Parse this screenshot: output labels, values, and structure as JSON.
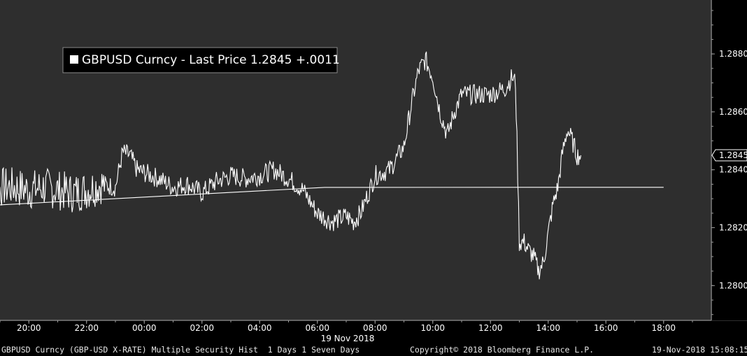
{
  "chart_data": {
    "type": "line",
    "title": "",
    "legend": {
      "entries": [
        {
          "label": "GBPUSD Curncy - Last Price 1.2845 +.0011",
          "color": "#ffffff"
        }
      ],
      "placement": "top-left"
    },
    "series": [
      {
        "name": "GBPUSD Curncy - Last Price",
        "color": "#ffffff",
        "x": [
          "18:00",
          "18:30",
          "19:00",
          "19:30",
          "20:00",
          "20:30",
          "21:00",
          "21:30",
          "22:00",
          "22:30",
          "23:00",
          "23:15",
          "23:30",
          "23:45",
          "00:00",
          "00:30",
          "01:00",
          "01:30",
          "02:00",
          "02:30",
          "03:00",
          "03:30",
          "04:00",
          "04:30",
          "05:00",
          "05:30",
          "06:00",
          "06:30",
          "07:00",
          "07:15",
          "07:30",
          "08:00",
          "08:30",
          "09:00",
          "09:15",
          "09:30",
          "09:45",
          "10:00",
          "10:15",
          "10:30",
          "10:45",
          "11:00",
          "11:30",
          "12:00",
          "12:30",
          "12:45",
          "12:52",
          "12:55",
          "13:00",
          "13:10",
          "13:20",
          "13:30",
          "13:40",
          "13:50",
          "14:00",
          "14:10",
          "14:20",
          "14:30",
          "14:40",
          "14:50",
          "15:00",
          "15:08"
        ],
        "y": [
          1.2834,
          1.2833,
          1.2834,
          1.2834,
          1.2833,
          1.2834,
          1.2833,
          1.2832,
          1.2833,
          1.2835,
          1.2834,
          1.2846,
          1.2845,
          1.284,
          1.2839,
          1.2837,
          1.2834,
          1.2835,
          1.2832,
          1.2836,
          1.2838,
          1.2837,
          1.2838,
          1.284,
          1.2837,
          1.2833,
          1.2825,
          1.2822,
          1.2824,
          1.2822,
          1.2825,
          1.2838,
          1.284,
          1.2848,
          1.2862,
          1.2874,
          1.2878,
          1.2872,
          1.286,
          1.2852,
          1.286,
          1.2866,
          1.2866,
          1.2866,
          1.2868,
          1.2872,
          1.287,
          1.285,
          1.2815,
          1.2815,
          1.2812,
          1.281,
          1.2805,
          1.2808,
          1.2818,
          1.2828,
          1.2834,
          1.2846,
          1.2854,
          1.285,
          1.2845,
          1.2845
        ]
      }
    ],
    "x_ticks": [
      "20:00",
      "22:00",
      "00:00",
      "02:00",
      "04:00",
      "06:00",
      "08:00",
      "10:00",
      "12:00",
      "14:00",
      "16:00",
      "18:00"
    ],
    "x_date_label": "19 Nov 2018",
    "y_ticks": [
      "1.2800",
      "1.2820",
      "1.2840",
      "1.2860",
      "1.2880"
    ],
    "ylim": [
      1.2788,
      1.2895
    ],
    "last_value_label": "1.2845",
    "grid": false,
    "background": "#2e2e2e",
    "axis_color": "#9a9a9a"
  },
  "footer": {
    "security": "GBPUSD Curncy (GBP-USD X-RATE) Multiple Security Hist  1 Days 1 Seven Days",
    "copyright": "Copyright© 2018 Bloomberg Finance L.P.",
    "timestamp": "19-Nov-2018 15:08:15"
  }
}
